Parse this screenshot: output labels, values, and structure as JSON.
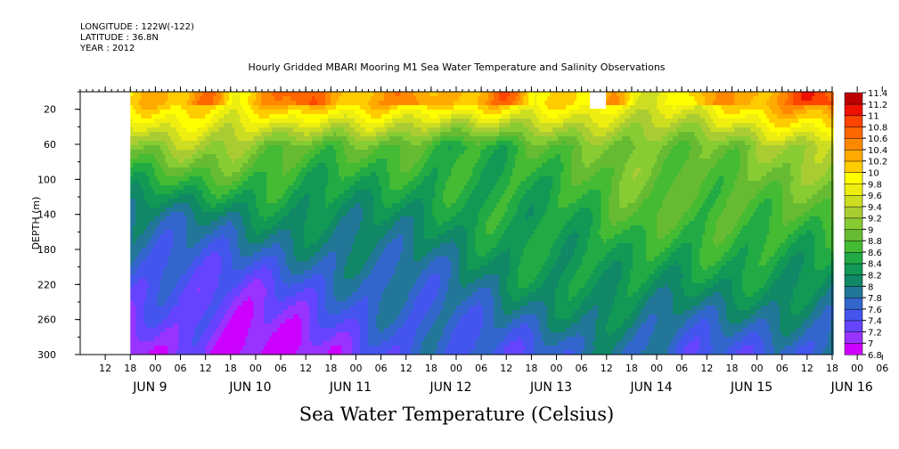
{
  "header": {
    "longitude": "LONGITUDE : 122W(-122)",
    "latitude": "LATITUDE : 36.8N",
    "year": "YEAR : 2012",
    "title": "Hourly Gridded MBARI Mooring M1 Sea Water Temperature and Salinity Observations"
  },
  "footer": {
    "title": "Sea Water Temperature (Celsius)"
  },
  "chart_data": {
    "type": "heatmap",
    "title": "Hourly Gridded MBARI Mooring M1 Sea Water Temperature and Salinity Observations",
    "xlabel": "",
    "ylabel": "DEPTH (m)",
    "colorbar_label": "Sea Water Temperature (Celsius)",
    "ylim": [
      300,
      0
    ],
    "y_ticks": [
      20,
      60,
      100,
      140,
      180,
      220,
      260,
      300
    ],
    "x_hour_ticks": [
      "12",
      "18",
      "00",
      "06",
      "12",
      "18",
      "00",
      "06",
      "12",
      "18",
      "00",
      "06",
      "12",
      "18",
      "00",
      "06",
      "12",
      "18",
      "00",
      "06",
      "12",
      "18",
      "00",
      "06",
      "12",
      "18",
      "00",
      "06",
      "12",
      "18",
      "00",
      "06"
    ],
    "x_day_labels": [
      "JUN  9",
      "JUN 10",
      "JUN 11",
      "JUN 12",
      "JUN 13",
      "JUN 14",
      "JUN 15",
      "JUN 16"
    ],
    "colorbar_levels": [
      6.8,
      7,
      7.2,
      7.4,
      7.6,
      7.8,
      8,
      8.2,
      8.4,
      8.6,
      8.8,
      9,
      9.2,
      9.4,
      9.6,
      9.8,
      10,
      10.2,
      10.4,
      10.6,
      10.8,
      11,
      11.2,
      11.4
    ],
    "colorbar_colors": [
      "#cc00ff",
      "#9933ff",
      "#6644ff",
      "#4455ee",
      "#3366cc",
      "#227799",
      "#118866",
      "#119955",
      "#22aa44",
      "#44bb33",
      "#66bb33",
      "#88cc33",
      "#aacc33",
      "#ccdd22",
      "#eeee11",
      "#ffff00",
      "#ffcc00",
      "#ffaa00",
      "#ff8800",
      "#ff6600",
      "#ff4400",
      "#ee1100",
      "#bb0000"
    ],
    "time_axis": "2012-06-09T06:00 to 2012-06-16T18:00, hourly",
    "data_start": "JUN 9 18",
    "missing_region": "JUN 9 12 to JUN 9 18 (white), small gap near JUN 14 06-09 at surface",
    "depth_profile_time_samples": {
      "times": [
        "JUN 9 18",
        "JUN 10 06",
        "JUN 10 18",
        "JUN 11 06",
        "JUN 11 18",
        "JUN 12 06",
        "JUN 12 18",
        "JUN 13 06",
        "JUN 13 18",
        "JUN 14 06",
        "JUN 14 18",
        "JUN 15 06",
        "JUN 15 18",
        "JUN 16 06",
        "JUN 16 18"
      ],
      "temp_at_10m": [
        10.0,
        10.2,
        10.0,
        10.6,
        10.0,
        10.2,
        10.2,
        10.4,
        9.8,
        10.0,
        9.8,
        9.8,
        10.0,
        10.4,
        10.8
      ],
      "temp_at_60m": [
        9.0,
        9.2,
        9.2,
        9.0,
        8.8,
        8.8,
        8.6,
        8.6,
        8.8,
        8.8,
        9.0,
        9.0,
        9.0,
        9.2,
        9.2
      ],
      "temp_at_140m": [
        8.0,
        8.0,
        8.0,
        8.2,
        8.2,
        8.2,
        8.2,
        8.4,
        8.4,
        8.6,
        8.8,
        8.6,
        8.8,
        8.8,
        8.8
      ],
      "temp_at_220m": [
        7.4,
        7.4,
        7.4,
        7.4,
        7.6,
        7.8,
        7.8,
        8.0,
        8.2,
        8.2,
        8.4,
        8.2,
        8.2,
        8.2,
        8.2
      ],
      "temp_at_290m": [
        7.0,
        7.2,
        6.8,
        7.0,
        7.2,
        7.4,
        7.6,
        7.6,
        7.6,
        7.8,
        7.8,
        7.6,
        7.6,
        7.6,
        7.6
      ]
    }
  }
}
